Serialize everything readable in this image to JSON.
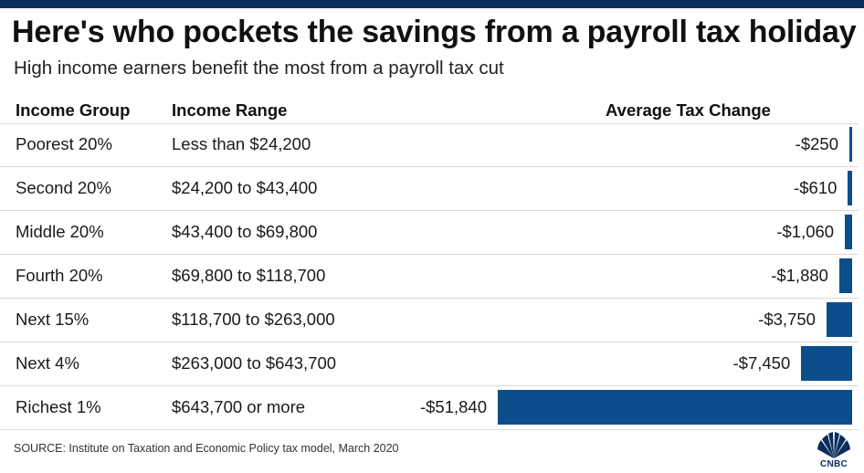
{
  "title": "Here's who pockets the savings from a payroll tax holiday",
  "subtitle": "High income earners benefit the most from a payroll tax cut",
  "columns": {
    "group": "Income Group",
    "range": "Income Range",
    "change": "Average Tax Change"
  },
  "source": "SOURCE: Institute on Taxation and Economic Policy tax model, March 2020",
  "logo_text": "CNBC",
  "colors": {
    "bar": "#0a4e8c",
    "top_bar": "#0b2d5c"
  },
  "chart_data": {
    "type": "bar",
    "title": "Here's who pockets the savings from a payroll tax holiday",
    "categories": [
      "Poorest 20%",
      "Second 20%",
      "Middle 20%",
      "Fourth 20%",
      "Next 15%",
      "Next 4%",
      "Richest 1%"
    ],
    "ranges": [
      "Less than $24,200",
      "$24,200 to $43,400",
      "$43,400 to $69,800",
      "$69,800 to $118,700",
      "$118,700 to $263,000",
      "$263,000 to $643,700",
      "$643,700 or more"
    ],
    "values": [
      -250,
      -610,
      -1060,
      -1880,
      -3750,
      -7450,
      -51840
    ],
    "labels": [
      "-$250",
      "-$610",
      "-$1,060",
      "-$1,880",
      "-$3,750",
      "-$7,450",
      "-$51,840"
    ],
    "orientation": "horizontal",
    "xlim": [
      -51840,
      0
    ]
  }
}
